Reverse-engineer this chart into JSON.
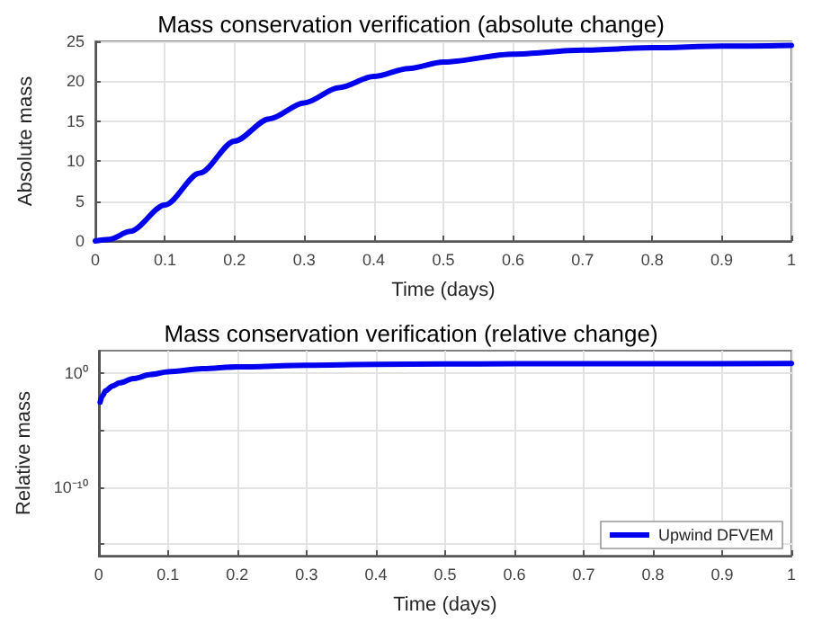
{
  "chart_data": [
    {
      "type": "line",
      "title": "Mass conservation verification (absolute change)",
      "xlabel": "Time (days)",
      "ylabel": "Absolute mass",
      "xlim": [
        0,
        1
      ],
      "xticks": [
        0,
        0.1,
        0.2,
        0.3,
        0.4,
        0.5,
        0.6,
        0.7,
        0.8,
        0.9,
        1
      ],
      "ylim": [
        0,
        25
      ],
      "yticks": [
        0,
        5,
        10,
        15,
        20,
        25
      ],
      "grid": true,
      "legend": false,
      "marker": "none",
      "line_style": "solid",
      "series": [
        {
          "color": "#0000ee",
          "x": [
            0,
            0.02,
            0.05,
            0.1,
            0.15,
            0.2,
            0.25,
            0.3,
            0.35,
            0.4,
            0.45,
            0.5,
            0.6,
            0.7,
            0.8,
            0.9,
            1
          ],
          "values": [
            0,
            0.2,
            1.2,
            4.5,
            8.5,
            12.5,
            15.3,
            17.3,
            19.2,
            20.6,
            21.6,
            22.4,
            23.4,
            23.9,
            24.2,
            24.4,
            24.5
          ]
        }
      ]
    },
    {
      "type": "line",
      "title": "Mass conservation verification (relative change)",
      "xlabel": "Time (days)",
      "ylabel": "Relative mass",
      "log": "y",
      "xlim": [
        0,
        1
      ],
      "xticks": [
        0,
        0.1,
        0.2,
        0.3,
        0.4,
        0.5,
        0.6,
        0.7,
        0.8,
        0.9,
        1
      ],
      "ylim": [
        1e-16,
        100
      ],
      "yticks": [
        {
          "value": 1e-15,
          "label": null
        },
        {
          "value": 1e-10,
          "label": "10⁻¹⁰"
        },
        {
          "value": 1e-05,
          "label": null
        },
        {
          "value": 1,
          "label": "10⁰"
        }
      ],
      "grid": true,
      "legend": "bottom right",
      "marker": "none",
      "line_style": "solid",
      "series": [
        {
          "name": "Upwind DFVEM",
          "color": "#0000ee",
          "x": [
            0.002,
            0.005,
            0.01,
            0.02,
            0.03,
            0.05,
            0.075,
            0.1,
            0.15,
            0.2,
            0.3,
            0.4,
            0.5,
            0.6,
            0.7,
            0.8,
            1
          ],
          "values": [
            0.003,
            0.01,
            0.03,
            0.08,
            0.15,
            0.35,
            0.8,
            1.4,
            2.6,
            3.8,
            5.2,
            6.2,
            6.8,
            7.1,
            7.2,
            7.3,
            7.4
          ]
        }
      ]
    }
  ]
}
